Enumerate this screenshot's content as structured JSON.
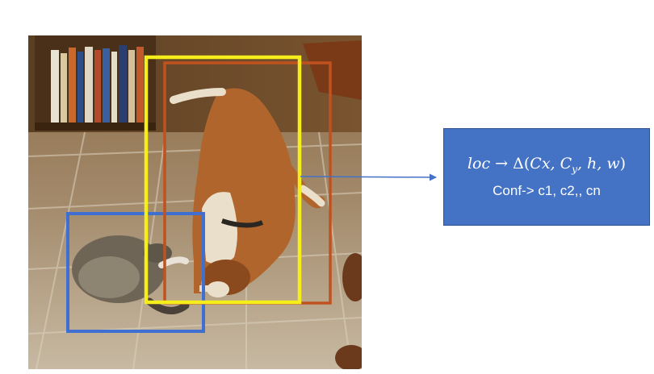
{
  "info_box": {
    "loc_label": "loc",
    "loc_arrow": "→",
    "loc_delta": "Δ",
    "loc_open": "(",
    "loc_cx": "Cx, ",
    "loc_cy_base": "C",
    "loc_cy_sub": "y",
    "loc_rest": ", h, w",
    "loc_close": ")",
    "conf_text": "Conf-> c1, c2,, cn"
  },
  "colors": {
    "box_fill": "#4472c4",
    "arrow": "#4472c4",
    "cat_box": "#3e6fd1",
    "dog_box_yellow": "#f5ee1a",
    "dog_box_orange": "#c0521f"
  },
  "photo": {
    "subjects": [
      "cat",
      "dog"
    ]
  }
}
